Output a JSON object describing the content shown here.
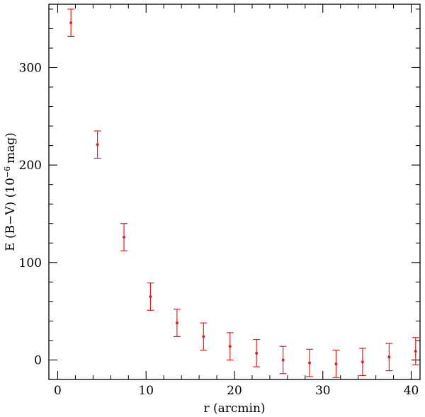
{
  "chart_data": {
    "type": "scatter",
    "xlabel": "r (arcmin)",
    "ylabel": "E (B−V) (10",
    "ylabel_exp": "−6",
    "ylabel_unit": "mag)",
    "xlim": [
      -1,
      41
    ],
    "ylim": [
      -20,
      365
    ],
    "x_ticks": [
      0,
      10,
      20,
      30,
      40
    ],
    "x_tick_labels": [
      "0",
      "10",
      "20",
      "30",
      "40"
    ],
    "y_ticks": [
      0,
      100,
      200,
      300
    ],
    "y_tick_labels": [
      "0",
      "100",
      "200",
      "300"
    ],
    "x_minor_step": 2,
    "y_minor_step": 20,
    "grid": false,
    "marker_color": "#e02020",
    "points": [
      {
        "x": 1.5,
        "y": 346,
        "err": 14
      },
      {
        "x": 4.5,
        "y": 221,
        "err": 14
      },
      {
        "x": 7.5,
        "y": 126,
        "err": 14
      },
      {
        "x": 10.5,
        "y": 65,
        "err": 14
      },
      {
        "x": 13.5,
        "y": 38,
        "err": 14
      },
      {
        "x": 16.5,
        "y": 24,
        "err": 14
      },
      {
        "x": 19.5,
        "y": 14,
        "err": 14
      },
      {
        "x": 22.5,
        "y": 7,
        "err": 14
      },
      {
        "x": 25.5,
        "y": 0,
        "err": 14
      },
      {
        "x": 28.5,
        "y": -3,
        "err": 14
      },
      {
        "x": 31.5,
        "y": -4,
        "err": 14
      },
      {
        "x": 34.5,
        "y": -2,
        "err": 14
      },
      {
        "x": 37.5,
        "y": 3,
        "err": 14
      },
      {
        "x": 40.5,
        "y": 9,
        "err": 14
      }
    ]
  }
}
